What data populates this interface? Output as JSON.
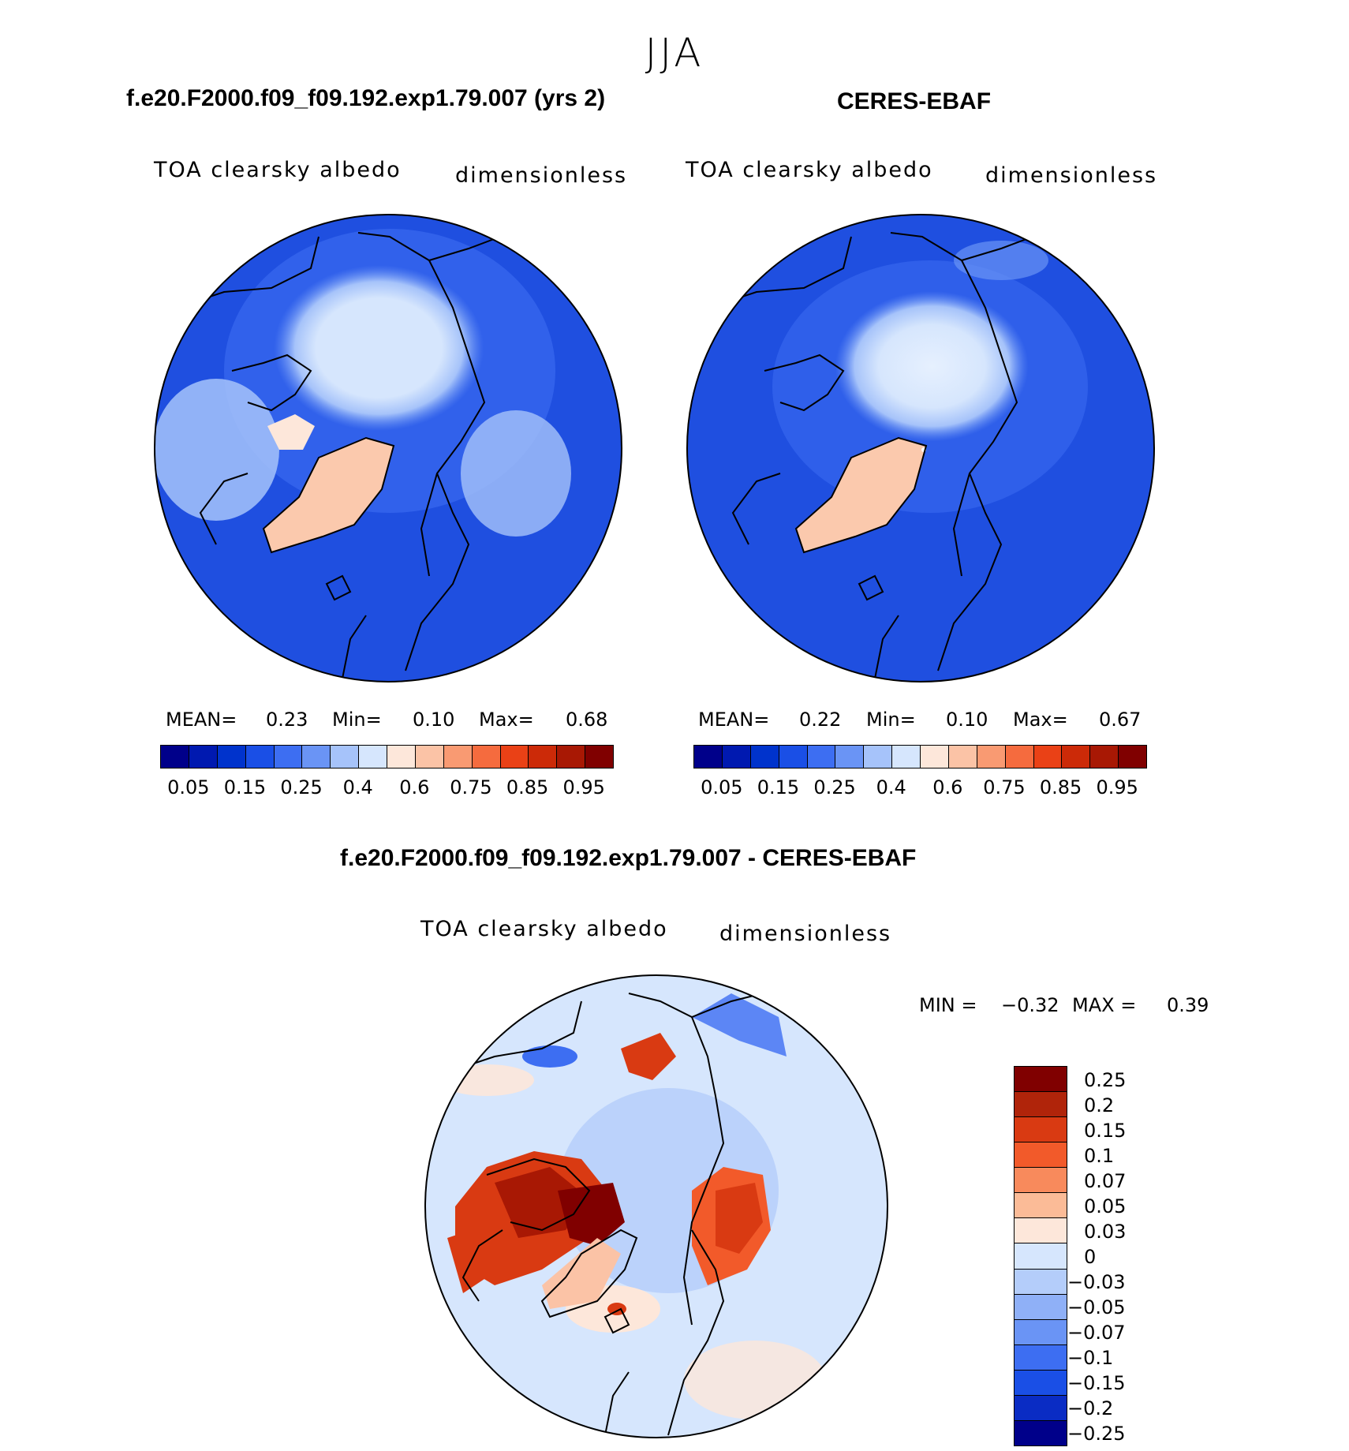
{
  "season": "JJA",
  "panels": [
    {
      "title": "f.e20.F2000.f09_f09.192.exp1.79.007 (yrs 2)",
      "variable": "TOA clearsky albedo",
      "units": "dimensionless",
      "stats": {
        "mean_label": "MEAN=",
        "mean": "0.23",
        "min_label": "Min=",
        "min": "0.10",
        "max_label": "Max=",
        "max": "0.68"
      }
    },
    {
      "title": "CERES-EBAF",
      "variable": "TOA clearsky albedo",
      "units": "dimensionless",
      "stats": {
        "mean_label": "MEAN=",
        "mean": "0.22",
        "min_label": "Min=",
        "min": "0.10",
        "max_label": "Max=",
        "max": "0.67"
      }
    }
  ],
  "abs_colorbar": {
    "colors": [
      "#00008a",
      "#0019b0",
      "#0033cc",
      "#1a4fe6",
      "#3d6ef2",
      "#6a94f5",
      "#a6c3fa",
      "#d6e6fd",
      "#fde7da",
      "#fbc3a6",
      "#f99a72",
      "#f56b3e",
      "#ea4116",
      "#cc2a08",
      "#a81804",
      "#800000"
    ],
    "tick_labels": [
      "0.05",
      "0.15",
      "0.25",
      "0.4",
      "0.6",
      "0.75",
      "0.85",
      "0.95"
    ]
  },
  "diff": {
    "title": "f.e20.F2000.f09_f09.192.exp1.79.007 - CERES-EBAF",
    "variable": "TOA clearsky albedo",
    "units": "dimensionless",
    "minmax": {
      "min_label": "MIN =",
      "min": "−0.32",
      "max_label": "MAX =",
      "max": "0.39"
    },
    "colorbar": {
      "colors": [
        "#800000",
        "#b0240a",
        "#d93a12",
        "#f25a2a",
        "#f88a5c",
        "#fbbb97",
        "#fde7da",
        "#d6e6fd",
        "#b4cdfa",
        "#8fb0f7",
        "#6a94f5",
        "#3d6ef2",
        "#1a4fe6",
        "#0a2cc4",
        "#00008a"
      ],
      "tick_labels": [
        "0.25",
        "0.2",
        "0.15",
        "0.1",
        "0.07",
        "0.05",
        "0.03",
        "0",
        "−0.03",
        "−0.05",
        "−0.07",
        "−0.1",
        "−0.15",
        "−0.2",
        "−0.25"
      ]
    }
  }
}
